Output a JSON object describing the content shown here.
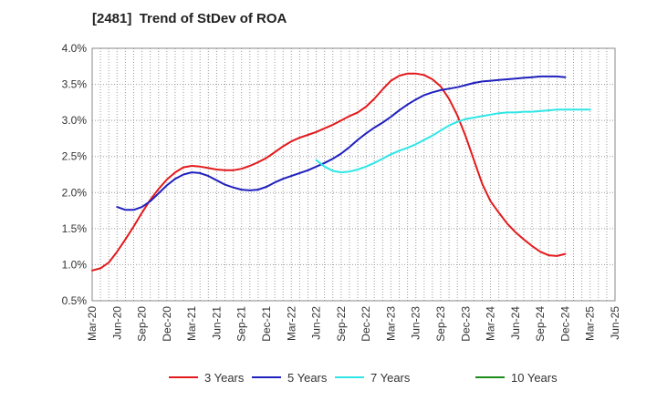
{
  "title": "[2481]  Trend of StDev of ROA",
  "chart_data": {
    "type": "line",
    "title": "[2481]  Trend of StDev of ROA",
    "xlabel": "",
    "ylabel": "",
    "grid": true,
    "legend_position": "bottom",
    "x_ticks": [
      "Mar-20",
      "Jun-20",
      "Sep-20",
      "Dec-20",
      "Mar-21",
      "Jun-21",
      "Sep-21",
      "Dec-21",
      "Mar-22",
      "Jun-22",
      "Sep-22",
      "Dec-22",
      "Mar-23",
      "Jun-23",
      "Sep-23",
      "Dec-23",
      "Mar-24",
      "Jun-24",
      "Sep-24",
      "Dec-24",
      "Mar-25",
      "Jun-25"
    ],
    "y_ticks": [
      "0.5%",
      "1.0%",
      "1.5%",
      "2.0%",
      "2.5%",
      "3.0%",
      "3.5%",
      "4.0%"
    ],
    "ylim": [
      0.5,
      4.0
    ],
    "series": [
      {
        "name": "3 Years",
        "color": "#e31a1c",
        "points": [
          [
            "Mar-20",
            0.92
          ],
          [
            "Apr-20",
            0.95
          ],
          [
            "May-20",
            1.03
          ],
          [
            "Jun-20",
            1.18
          ],
          [
            "Jul-20",
            1.35
          ],
          [
            "Aug-20",
            1.53
          ],
          [
            "Sep-20",
            1.72
          ],
          [
            "Oct-20",
            1.9
          ],
          [
            "Nov-20",
            2.05
          ],
          [
            "Dec-20",
            2.18
          ],
          [
            "Jan-21",
            2.28
          ],
          [
            "Feb-21",
            2.35
          ],
          [
            "Mar-21",
            2.37
          ],
          [
            "Apr-21",
            2.36
          ],
          [
            "May-21",
            2.34
          ],
          [
            "Jun-21",
            2.32
          ],
          [
            "Jul-21",
            2.31
          ],
          [
            "Aug-21",
            2.31
          ],
          [
            "Sep-21",
            2.33
          ],
          [
            "Oct-21",
            2.37
          ],
          [
            "Nov-21",
            2.42
          ],
          [
            "Dec-21",
            2.48
          ],
          [
            "Jan-22",
            2.56
          ],
          [
            "Feb-22",
            2.64
          ],
          [
            "Mar-22",
            2.71
          ],
          [
            "Apr-22",
            2.76
          ],
          [
            "May-22",
            2.8
          ],
          [
            "Jun-22",
            2.84
          ],
          [
            "Jul-22",
            2.89
          ],
          [
            "Aug-22",
            2.94
          ],
          [
            "Sep-22",
            3.0
          ],
          [
            "Oct-22",
            3.06
          ],
          [
            "Nov-22",
            3.11
          ],
          [
            "Dec-22",
            3.19
          ],
          [
            "Jan-23",
            3.3
          ],
          [
            "Feb-23",
            3.43
          ],
          [
            "Mar-23",
            3.55
          ],
          [
            "Apr-23",
            3.62
          ],
          [
            "May-23",
            3.65
          ],
          [
            "Jun-23",
            3.65
          ],
          [
            "Jul-23",
            3.63
          ],
          [
            "Aug-23",
            3.57
          ],
          [
            "Sep-23",
            3.47
          ],
          [
            "Oct-23",
            3.3
          ],
          [
            "Nov-23",
            3.07
          ],
          [
            "Dec-23",
            2.78
          ],
          [
            "Jan-24",
            2.45
          ],
          [
            "Feb-24",
            2.12
          ],
          [
            "Mar-24",
            1.88
          ],
          [
            "Apr-24",
            1.72
          ],
          [
            "May-24",
            1.57
          ],
          [
            "Jun-24",
            1.45
          ],
          [
            "Jul-24",
            1.35
          ],
          [
            "Aug-24",
            1.26
          ],
          [
            "Sep-24",
            1.18
          ],
          [
            "Oct-24",
            1.13
          ],
          [
            "Nov-24",
            1.12
          ],
          [
            "Dec-24",
            1.15
          ]
        ]
      },
      {
        "name": "5 Years",
        "color": "#1f1fbf",
        "points": [
          [
            "Jun-20",
            1.8
          ],
          [
            "Jul-20",
            1.76
          ],
          [
            "Aug-20",
            1.76
          ],
          [
            "Sep-20",
            1.8
          ],
          [
            "Oct-20",
            1.88
          ],
          [
            "Nov-20",
            1.99
          ],
          [
            "Dec-20",
            2.1
          ],
          [
            "Jan-21",
            2.19
          ],
          [
            "Feb-21",
            2.25
          ],
          [
            "Mar-21",
            2.28
          ],
          [
            "Apr-21",
            2.27
          ],
          [
            "May-21",
            2.23
          ],
          [
            "Jun-21",
            2.17
          ],
          [
            "Jul-21",
            2.11
          ],
          [
            "Aug-21",
            2.07
          ],
          [
            "Sep-21",
            2.04
          ],
          [
            "Oct-21",
            2.03
          ],
          [
            "Nov-21",
            2.04
          ],
          [
            "Dec-21",
            2.08
          ],
          [
            "Jan-22",
            2.14
          ],
          [
            "Feb-22",
            2.19
          ],
          [
            "Mar-22",
            2.23
          ],
          [
            "Apr-22",
            2.27
          ],
          [
            "May-22",
            2.31
          ],
          [
            "Jun-22",
            2.36
          ],
          [
            "Jul-22",
            2.41
          ],
          [
            "Aug-22",
            2.47
          ],
          [
            "Sep-22",
            2.54
          ],
          [
            "Oct-22",
            2.63
          ],
          [
            "Nov-22",
            2.73
          ],
          [
            "Dec-22",
            2.82
          ],
          [
            "Jan-23",
            2.9
          ],
          [
            "Feb-23",
            2.97
          ],
          [
            "Mar-23",
            3.05
          ],
          [
            "Apr-23",
            3.14
          ],
          [
            "May-23",
            3.22
          ],
          [
            "Jun-23",
            3.29
          ],
          [
            "Jul-23",
            3.35
          ],
          [
            "Aug-23",
            3.39
          ],
          [
            "Sep-23",
            3.42
          ],
          [
            "Oct-23",
            3.44
          ],
          [
            "Nov-23",
            3.46
          ],
          [
            "Dec-23",
            3.49
          ],
          [
            "Jan-24",
            3.52
          ],
          [
            "Feb-24",
            3.54
          ],
          [
            "Mar-24",
            3.55
          ],
          [
            "Apr-24",
            3.56
          ],
          [
            "May-24",
            3.57
          ],
          [
            "Jun-24",
            3.58
          ],
          [
            "Jul-24",
            3.59
          ],
          [
            "Aug-24",
            3.6
          ],
          [
            "Sep-24",
            3.61
          ],
          [
            "Oct-24",
            3.61
          ],
          [
            "Nov-24",
            3.61
          ],
          [
            "Dec-24",
            3.6
          ]
        ]
      },
      {
        "name": "7 Years",
        "color": "#2ee6e6",
        "points": [
          [
            "Jun-22",
            2.45
          ],
          [
            "Jul-22",
            2.36
          ],
          [
            "Aug-22",
            2.3
          ],
          [
            "Sep-22",
            2.28
          ],
          [
            "Oct-22",
            2.29
          ],
          [
            "Nov-22",
            2.32
          ],
          [
            "Dec-22",
            2.36
          ],
          [
            "Jan-23",
            2.41
          ],
          [
            "Feb-23",
            2.47
          ],
          [
            "Mar-23",
            2.53
          ],
          [
            "Apr-23",
            2.58
          ],
          [
            "May-23",
            2.62
          ],
          [
            "Jun-23",
            2.67
          ],
          [
            "Jul-23",
            2.73
          ],
          [
            "Aug-23",
            2.79
          ],
          [
            "Sep-23",
            2.86
          ],
          [
            "Oct-23",
            2.93
          ],
          [
            "Nov-23",
            2.98
          ],
          [
            "Dec-23",
            3.02
          ],
          [
            "Jan-24",
            3.04
          ],
          [
            "Feb-24",
            3.06
          ],
          [
            "Mar-24",
            3.08
          ],
          [
            "Apr-24",
            3.1
          ],
          [
            "May-24",
            3.11
          ],
          [
            "Jun-24",
            3.11
          ],
          [
            "Jul-24",
            3.12
          ],
          [
            "Aug-24",
            3.12
          ],
          [
            "Sep-24",
            3.13
          ],
          [
            "Oct-24",
            3.14
          ],
          [
            "Nov-24",
            3.15
          ],
          [
            "Dec-24",
            3.15
          ],
          [
            "Jan-25",
            3.15
          ],
          [
            "Feb-25",
            3.15
          ],
          [
            "Mar-25",
            3.15
          ]
        ]
      },
      {
        "name": "10 Years",
        "color": "#1a8c1a",
        "points": []
      }
    ]
  }
}
